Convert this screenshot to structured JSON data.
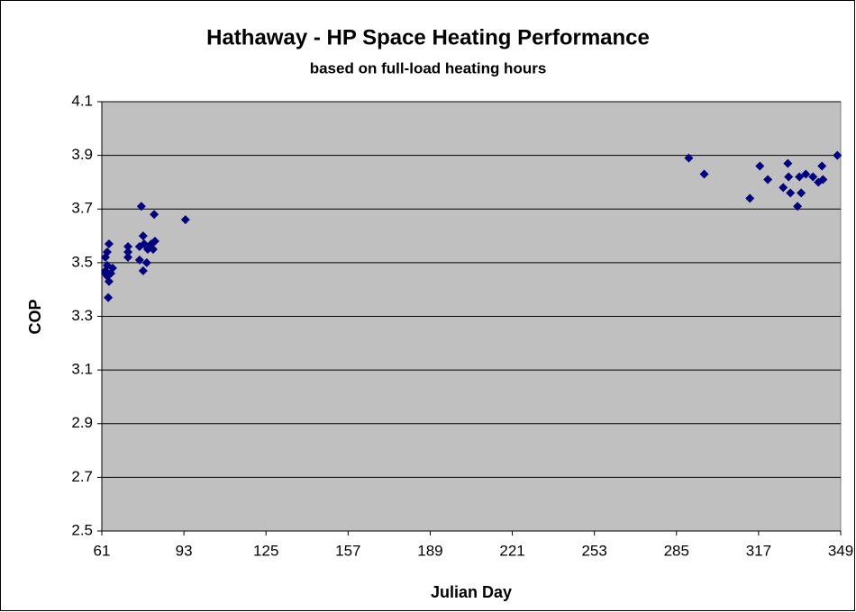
{
  "chart_data": {
    "type": "scatter",
    "title": "Hathaway - HP Space Heating Performance",
    "subtitle": "based on full-load heating hours",
    "x_label": "Julian Day",
    "y_label": "COP",
    "color": "#000080",
    "plot_background": "#c0c0c0",
    "grid": true,
    "xlim": [
      61,
      349
    ],
    "xticks": [
      61,
      93,
      125,
      157,
      189,
      221,
      253,
      285,
      317,
      349
    ],
    "ylim": [
      2.5,
      4.1
    ],
    "yticks": [
      {
        "value": 2.5,
        "label": "2.5"
      },
      {
        "value": 2.7,
        "label": "2.7"
      },
      {
        "value": 2.9,
        "label": "2.9"
      },
      {
        "value": 3.1,
        "label": "3.1"
      },
      {
        "value": 3.3,
        "label": "3.3"
      },
      {
        "value": 3.5,
        "label": "3.5"
      },
      {
        "value": 3.7,
        "label": "3.7"
      },
      {
        "value": 3.9,
        "label": "3.9"
      },
      {
        "value": 4.1,
        "label": "4.1"
      }
    ],
    "x": [
      62.4,
      63.8,
      63.1,
      62.4,
      62.4,
      63.1,
      63.8,
      64.5,
      65.2,
      63.5,
      63.1,
      71.2,
      71.2,
      71.2,
      76.4,
      77.1,
      77.5,
      75.7,
      75.7,
      77.1,
      78.5,
      78.9,
      80.3,
      81.7,
      81.0,
      81.4,
      93.6,
      289.8,
      295.8,
      313.6,
      317.5,
      320.6,
      326.6,
      328.4,
      328.7,
      329.4,
      332.2,
      332.9,
      333.6,
      335.4,
      338.2,
      340.3,
      341.7,
      342.1,
      347.7
    ],
    "values": [
      3.52,
      3.57,
      3.54,
      3.47,
      3.46,
      3.45,
      3.43,
      3.46,
      3.48,
      3.37,
      3.49,
      3.56,
      3.54,
      3.52,
      3.71,
      3.6,
      3.57,
      3.56,
      3.51,
      3.47,
      3.5,
      3.55,
      3.57,
      3.58,
      3.55,
      3.68,
      3.66,
      3.89,
      3.83,
      3.74,
      3.86,
      3.81,
      3.78,
      3.87,
      3.82,
      3.76,
      3.71,
      3.82,
      3.76,
      3.83,
      3.82,
      3.8,
      3.86,
      3.81,
      3.9
    ]
  }
}
